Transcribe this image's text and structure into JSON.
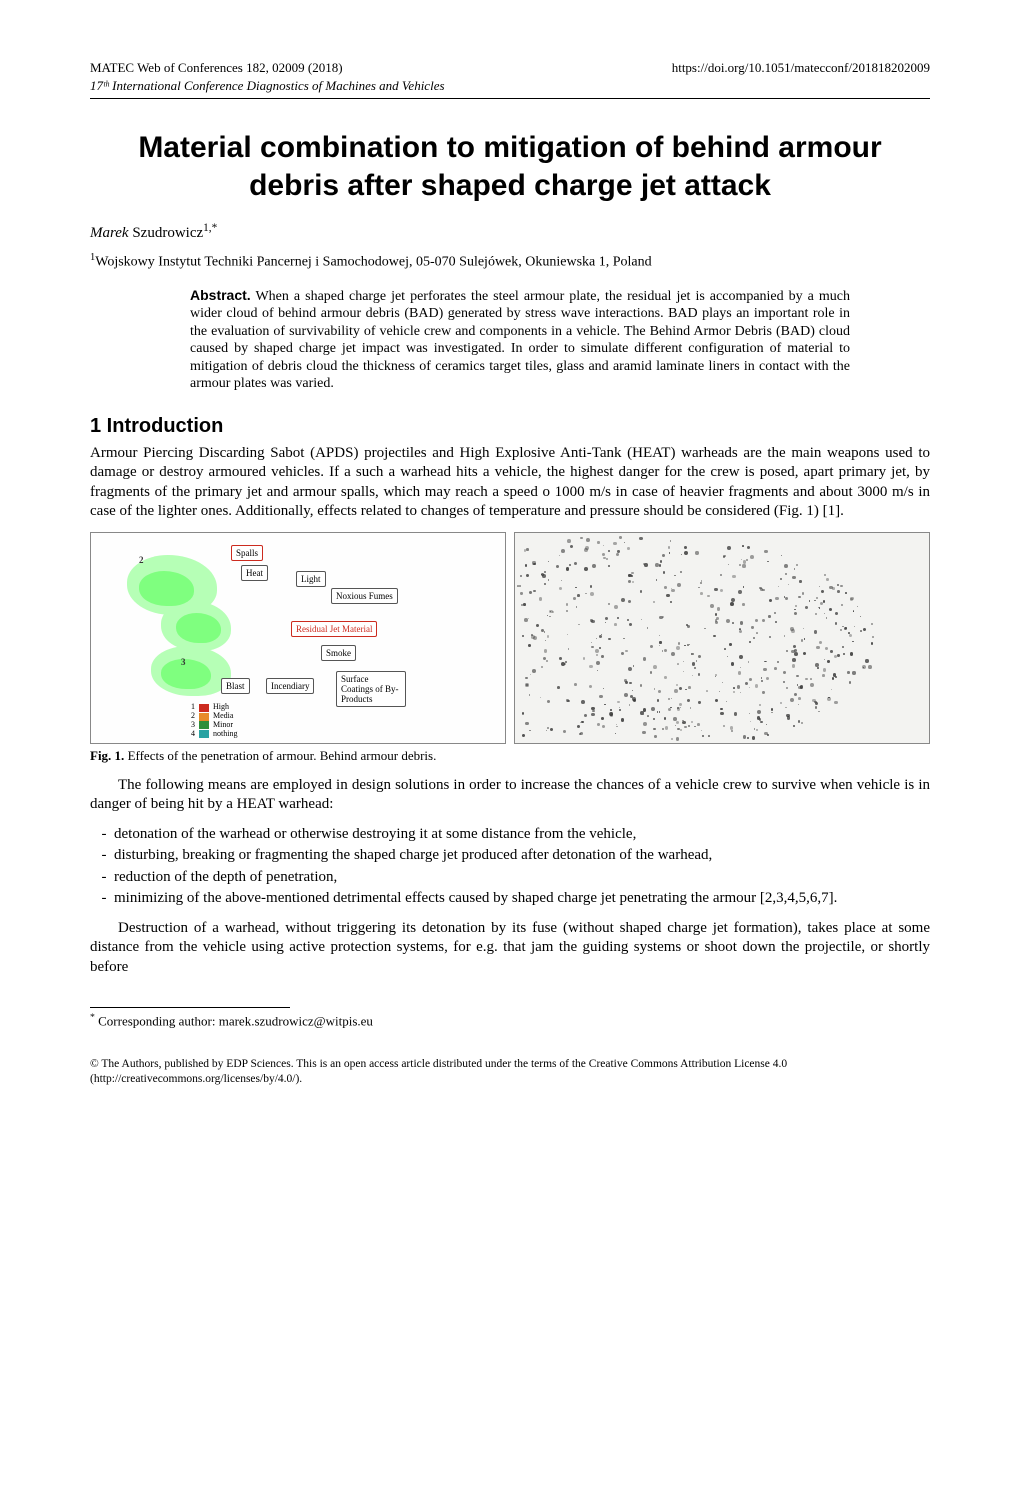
{
  "header": {
    "left": "MATEC Web of Conferences 182, 02009 (2018)",
    "right": "https://doi.org/10.1051/matecconf/201818202009",
    "subline": "17ᵗʰ International Conference Diagnostics of Machines and Vehicles"
  },
  "title": "Material combination to mitigation of behind armour debris after shaped charge jet attack",
  "author": {
    "first": "Marek",
    "last": "Szudrowicz",
    "sup": "1,*"
  },
  "affiliation": {
    "sup": "1",
    "text": "Wojskowy Instytut Techniki Pancernej i Samochodowej, 05-070 Sulejówek, Okuniewska 1, Poland"
  },
  "abstract": {
    "label": "Abstract.",
    "text": "When a shaped charge jet perforates the steel armour plate, the residual jet is accompanied by a much wider cloud of behind armour debris (BAD) generated by stress wave interactions. BAD plays an important role in the evaluation of survivability of vehicle crew and components in a vehicle. The Behind Armor Debris (BAD) cloud caused by shaped charge jet impact was investigated. In order to simulate different configuration of material to mitigation of debris cloud the thickness of ceramics target tiles, glass and aramid laminate liners in contact with the armour plates was varied."
  },
  "section1": {
    "heading": "1 Introduction",
    "p1": "Armour Piercing Discarding Sabot (APDS) projectiles and High Explosive Anti-Tank (HEAT) warheads are the main weapons used to damage or destroy armoured vehicles. If a such a warhead hits a vehicle, the highest danger for the crew is posed, apart primary jet, by fragments of the primary jet and armour spalls, which may reach a speed o 1000 m/s in case of heavier fragments and about 3000 m/s in case of the lighter ones. Additionally, effects related to changes of temperature and pressure should be considered (Fig. 1) [1].",
    "p2": "The following means are employed in design solutions in order to increase the chances of a vehicle crew to survive when vehicle is in danger of being hit by a HEAT warhead:",
    "bullets": [
      "detonation of the warhead or otherwise destroying it at some distance from the vehicle,",
      "disturbing, breaking or fragmenting the shaped charge jet produced after detonation of the warhead,",
      "reduction of the depth of penetration,",
      "minimizing of the above-mentioned detrimental effects caused by shaped charge jet penetrating the armour [2,3,4,5,6,7]."
    ],
    "p3": "Destruction of a warhead, without triggering its detonation by its fuse (without shaped charge jet formation), takes place at some distance from the vehicle using active protection systems, for e.g. that jam the guiding systems or shoot down the projectile, or shortly before"
  },
  "figure1": {
    "caption_label": "Fig. 1.",
    "caption_text": "Effects of the penetration of armour. Behind armour debris.",
    "diagram": {
      "nodes": {
        "spalls": "Spalls",
        "heat": "Heat",
        "light": "Light",
        "noxious": "Noxious Fumes",
        "residual": "Residual Jet Material",
        "smoke": "Smoke",
        "blast": "Blast",
        "incendiary": "Incendiary",
        "surface": "Surface Coatings of By-Products"
      },
      "labels": {
        "num2": "2",
        "num3": "3"
      },
      "colors": {
        "blob_inner": "#7fff7f",
        "blob_outer": "#b6ffb6",
        "red": "#cc2b1f",
        "orange": "#e88b2a",
        "yellow": "#d6c94b",
        "green": "#2f8f3a",
        "cyan": "#2aa3a3"
      },
      "legend": [
        {
          "n": "1",
          "label": "High",
          "color": "#cc2b1f"
        },
        {
          "n": "2",
          "label": "Media",
          "color": "#e88b2a"
        },
        {
          "n": "3",
          "label": "Minor",
          "color": "#2f8f3a"
        },
        {
          "n": "4",
          "label": "nothing",
          "color": "#2aa3a3"
        }
      ]
    }
  },
  "footnote": {
    "marker": "*",
    "text": "Corresponding author: marek.szudrowicz@witpis.eu"
  },
  "license": "© The Authors, published by EDP Sciences. This is an open access article distributed under the terms of the Creative Commons Attribution License 4.0 (http://creativecommons.org/licenses/by/4.0/)."
}
